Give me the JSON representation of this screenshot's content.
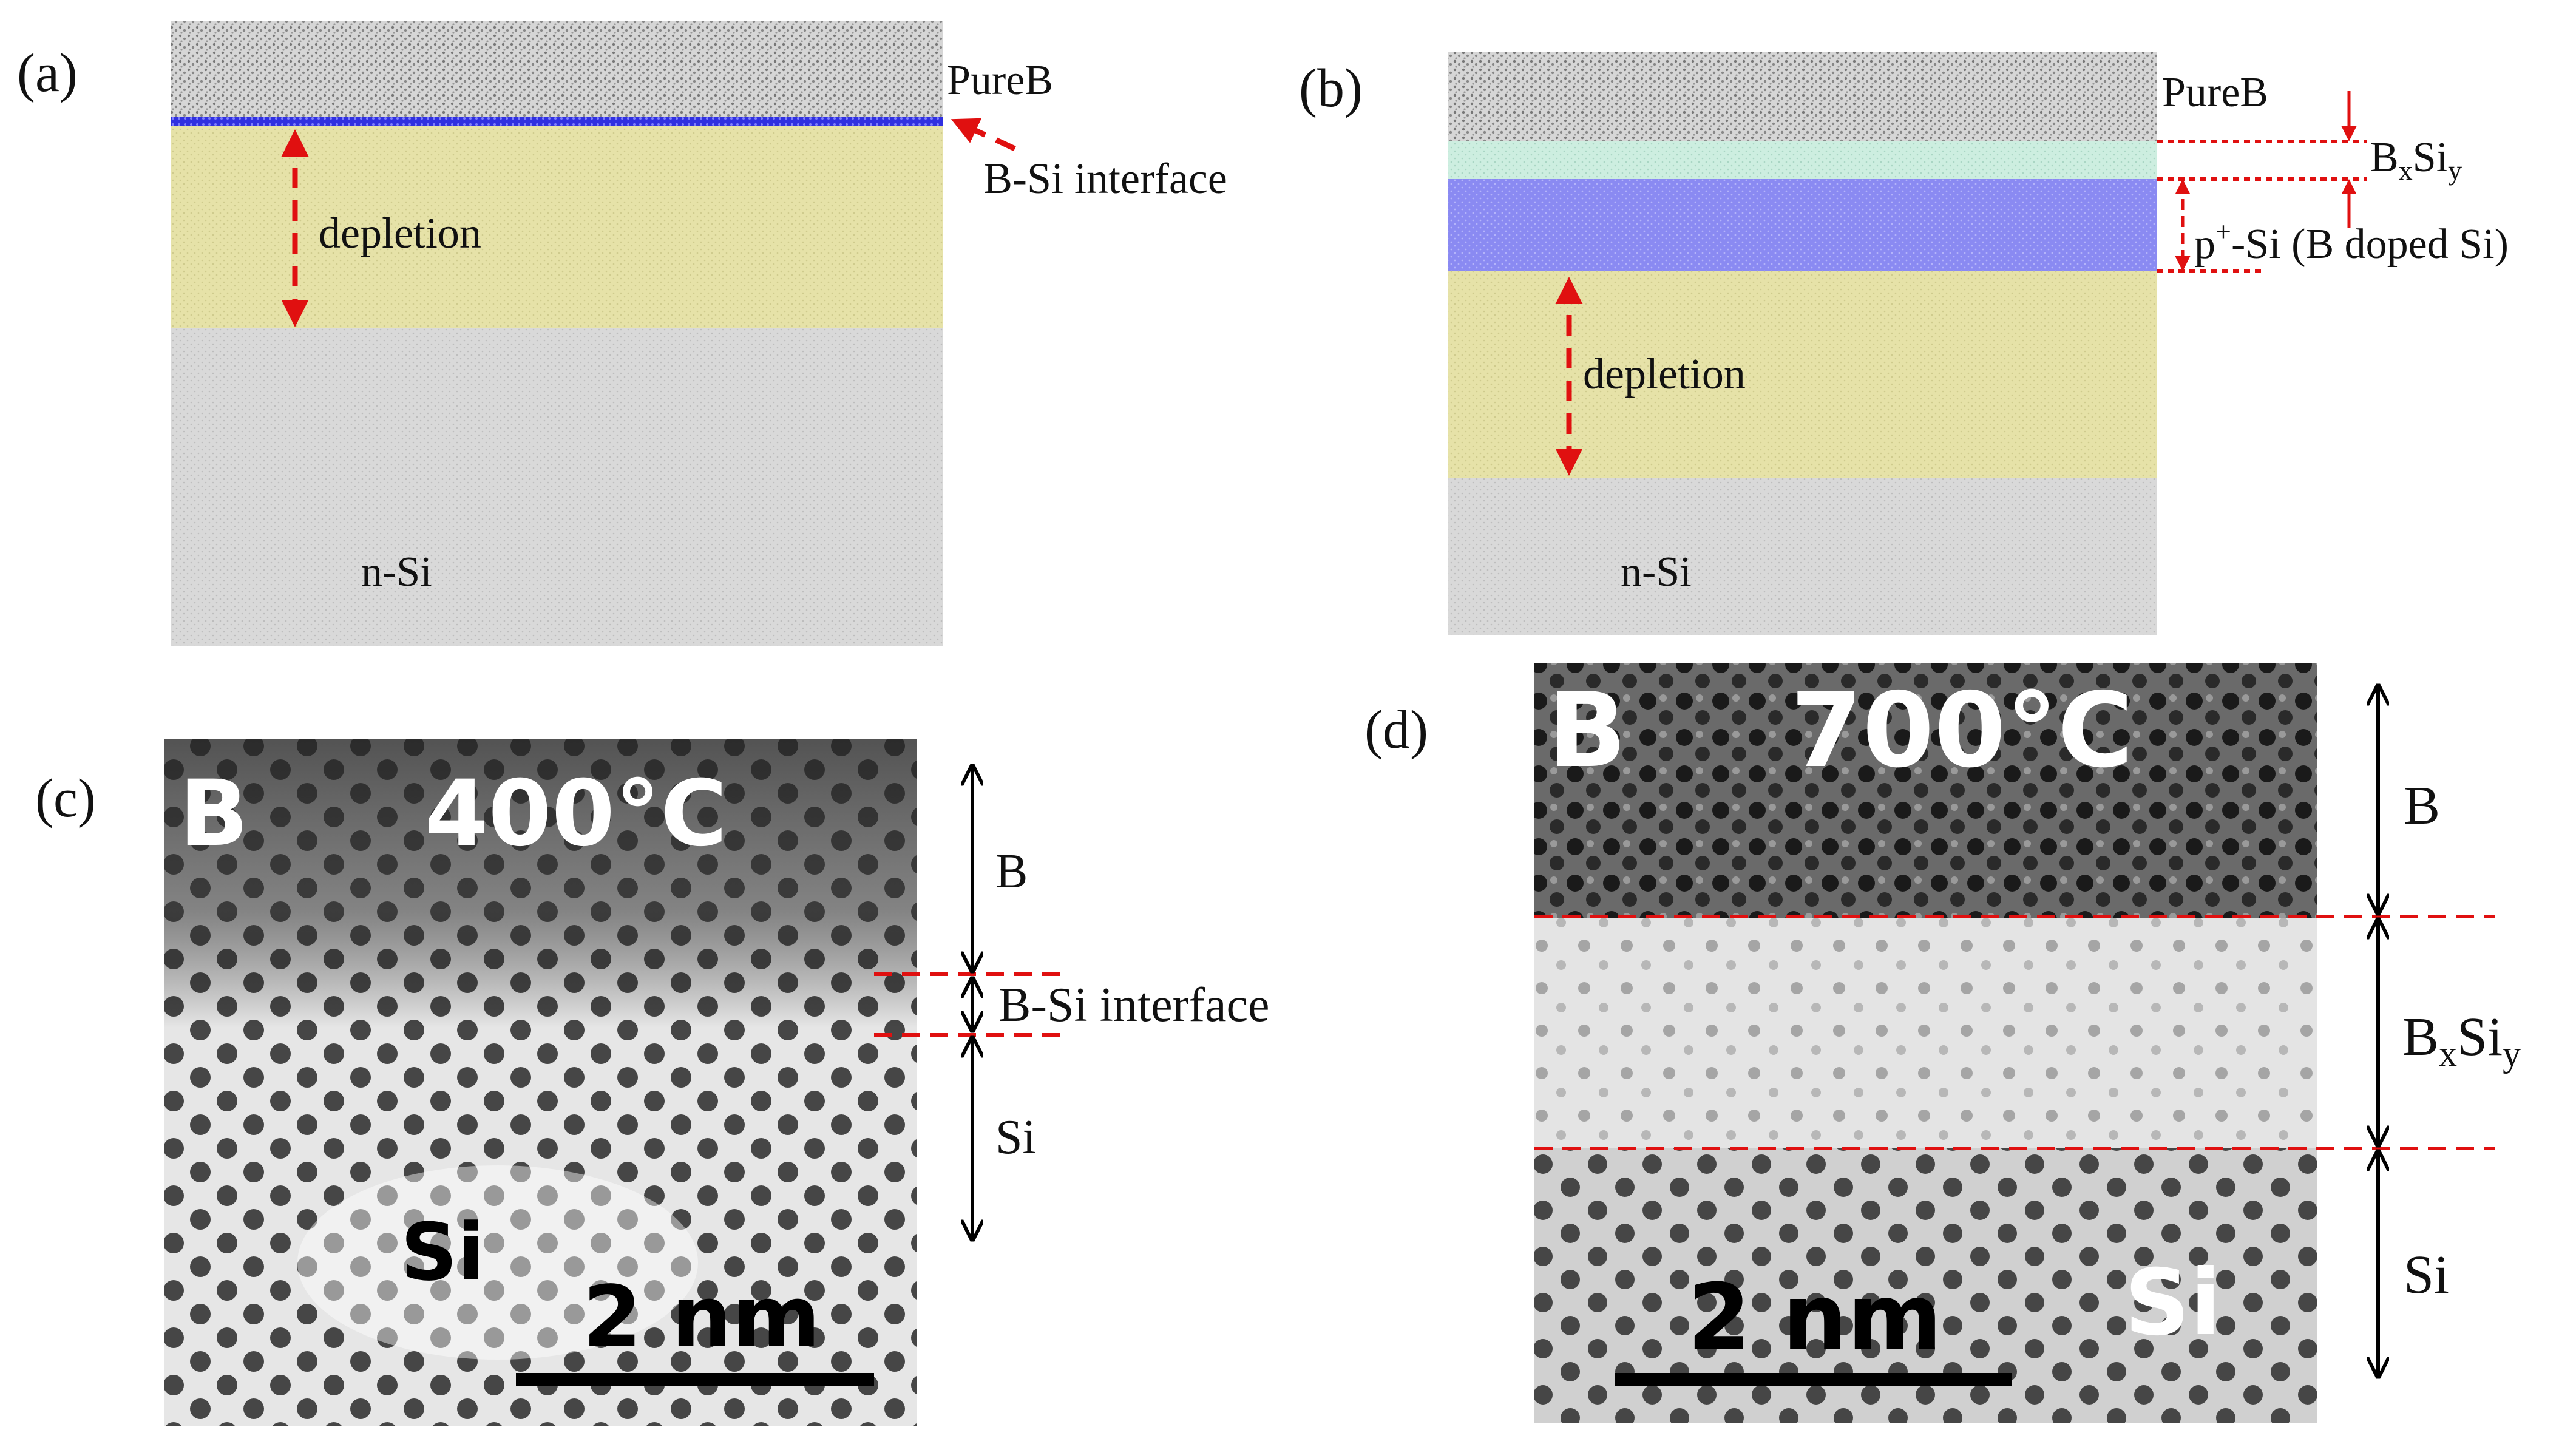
{
  "panels": {
    "a": {
      "tag": "(a)",
      "pureb": "PureB",
      "interface": "B-Si interface",
      "depletion": "depletion",
      "substrate": "n-Si"
    },
    "b": {
      "tag": "(b)",
      "pureb": "PureB",
      "bxsiy_base_1": "B",
      "bxsiy_sub_1": "x",
      "bxsiy_base_2": "Si",
      "bxsiy_sub_2": "y",
      "p_base": "p",
      "p_sup": "+",
      "p_rest": "-Si (B doped Si)",
      "depletion": "depletion",
      "substrate": "n-Si"
    },
    "c": {
      "tag": "(c)",
      "img_b": "B",
      "img_temp": "400°C",
      "img_si": "Si",
      "scale": "2 nm",
      "label_b": "B",
      "label_interface": "B-Si interface",
      "label_si": "Si"
    },
    "d": {
      "tag": "(d)",
      "img_b": "B",
      "img_temp": "700°C",
      "img_si": "Si",
      "scale": "2 nm",
      "label_b": "B",
      "label_bx_1": "B",
      "label_bx_sub_1": "x",
      "label_bx_2": "Si",
      "label_bx_sub_2": "y",
      "label_si": "Si"
    }
  },
  "colors": {
    "pureb_layer": "#cfcfcf",
    "interface_layer": "#5a5ae8",
    "depletion_layer": "#e3e0a6",
    "substrate_layer": "#d4d4d4",
    "bxsiy_layer": "#c8e8dc",
    "pplus_layer": "#8c8cf0",
    "marker_red": "#e01010"
  }
}
